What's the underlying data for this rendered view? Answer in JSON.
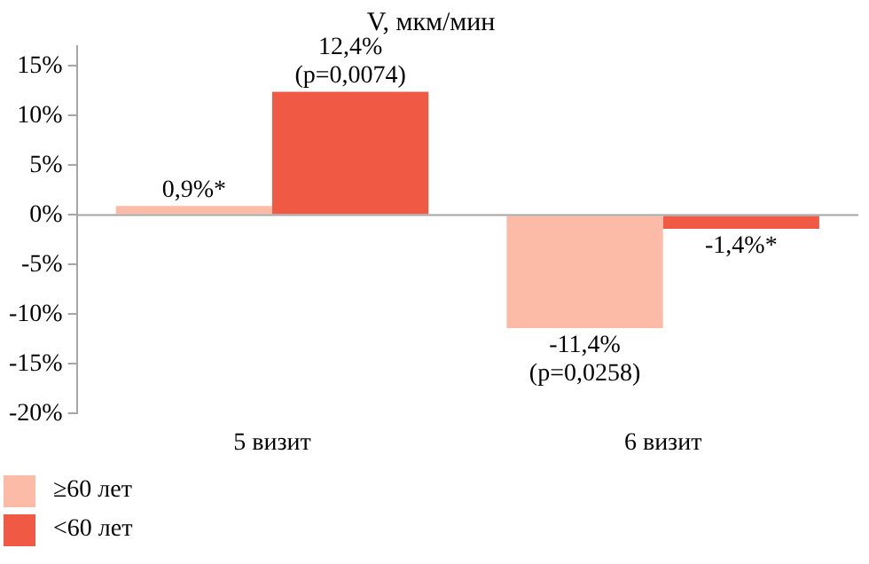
{
  "chart_data": {
    "type": "bar",
    "title": "V, мкм/мин",
    "categories": [
      "5 визит",
      "6 визит"
    ],
    "series": [
      {
        "name": "≥60 лет",
        "color": "#fbbba6",
        "values": [
          0.9,
          -11.4
        ],
        "value_labels": [
          "0,9%*",
          "-11,4%\n(p=0,0258)"
        ]
      },
      {
        "name": "<60 лет",
        "color": "#f05a44",
        "values": [
          12.4,
          -1.4
        ],
        "value_labels": [
          "12,4%\n(p=0,0074)",
          "-1,4%*"
        ]
      }
    ],
    "ylim": [
      -20,
      17
    ],
    "yticks": [
      {
        "value": 15,
        "label": "15%"
      },
      {
        "value": 10,
        "label": "10%"
      },
      {
        "value": 5,
        "label": "5%"
      },
      {
        "value": 0,
        "label": "0%"
      },
      {
        "value": -5,
        "label": "-5%"
      },
      {
        "value": -10,
        "label": "-10%"
      },
      {
        "value": -15,
        "label": "-15%"
      },
      {
        "value": -20,
        "label": "-20%"
      }
    ],
    "ref_lines": [
      {
        "axis": "y",
        "value": 0,
        "color": "#a6a6a6"
      }
    ],
    "grid": false,
    "legend": "bottom left"
  }
}
